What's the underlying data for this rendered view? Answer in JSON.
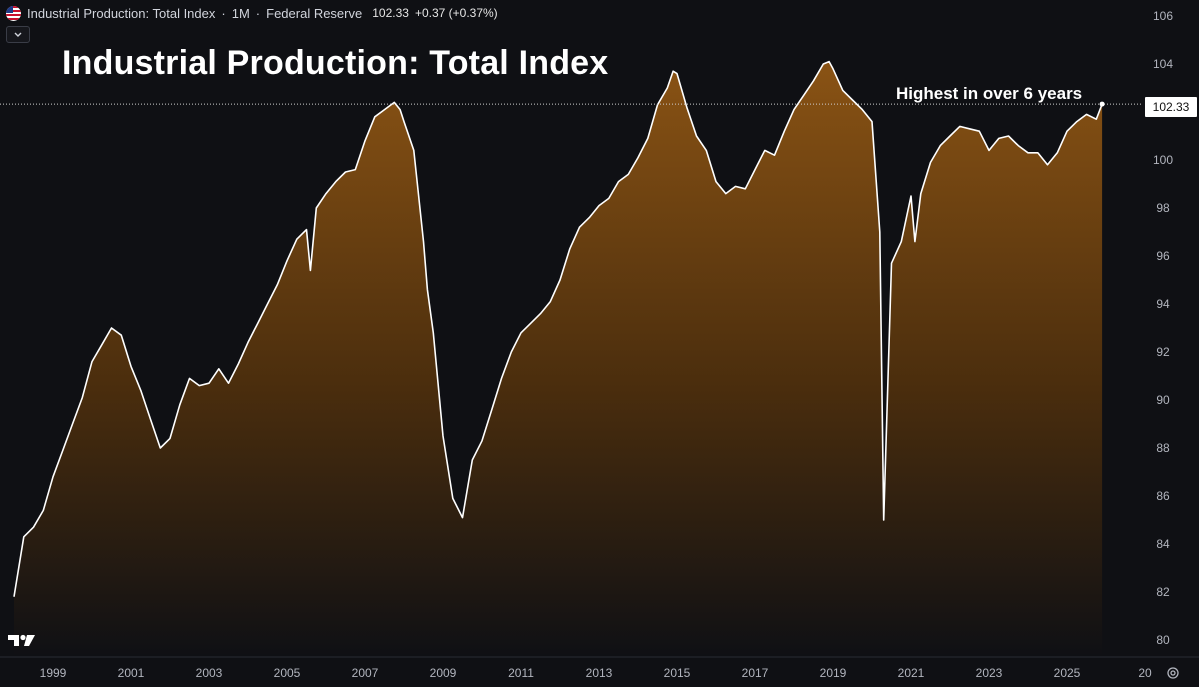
{
  "header": {
    "symbol_name": "Industrial Production: Total Index",
    "separator": "·",
    "interval": "1M",
    "source": "Federal Reserve",
    "price": "102.33",
    "change": "+0.37 (+0.37%)"
  },
  "icons": {
    "flag": "us-flag-icon",
    "collapse": "chevron-down-icon",
    "logo": "tradingview-logo-icon",
    "settings": "gear-icon"
  },
  "colors": {
    "background": "#0f1014",
    "line": "#ffffff",
    "fill_top": "#8a5314",
    "fill_bottom": "#0f1014",
    "text": "#d1d4dc",
    "axis_text": "#b2b5be"
  },
  "chart_data": {
    "type": "area",
    "title": "Industrial Production: Total Index",
    "annotation": "Highest in over 6 years",
    "last_value": 102.33,
    "last_value_label": "102.33",
    "xlim": [
      1998.0,
      2027.0
    ],
    "ylim": [
      79.3,
      106.6
    ],
    "y_ticks": [
      "80",
      "82",
      "84",
      "86",
      "88",
      "90",
      "92",
      "94",
      "96",
      "98",
      "100",
      "102",
      "104",
      "106"
    ],
    "x_ticks": [
      "1999",
      "2001",
      "2003",
      "2005",
      "2007",
      "2009",
      "2011",
      "2013",
      "2015",
      "2017",
      "2019",
      "2021",
      "2023",
      "2025",
      "20"
    ],
    "x": [
      1998.0,
      1998.25,
      1998.5,
      1998.75,
      1999.0,
      1999.25,
      1999.5,
      1999.75,
      2000.0,
      2000.25,
      2000.5,
      2000.75,
      2001.0,
      2001.25,
      2001.5,
      2001.75,
      2002.0,
      2002.25,
      2002.5,
      2002.75,
      2003.0,
      2003.25,
      2003.5,
      2003.75,
      2004.0,
      2004.25,
      2004.5,
      2004.75,
      2005.0,
      2005.25,
      2005.5,
      2005.6,
      2005.75,
      2006.0,
      2006.25,
      2006.5,
      2006.75,
      2007.0,
      2007.25,
      2007.5,
      2007.75,
      2007.9,
      2008.0,
      2008.25,
      2008.5,
      2008.6,
      2008.75,
      2009.0,
      2009.25,
      2009.5,
      2009.75,
      2010.0,
      2010.25,
      2010.5,
      2010.75,
      2011.0,
      2011.25,
      2011.5,
      2011.75,
      2012.0,
      2012.25,
      2012.5,
      2012.75,
      2013.0,
      2013.25,
      2013.5,
      2013.75,
      2014.0,
      2014.25,
      2014.5,
      2014.75,
      2014.9,
      2015.0,
      2015.25,
      2015.5,
      2015.75,
      2016.0,
      2016.25,
      2016.5,
      2016.75,
      2017.0,
      2017.25,
      2017.5,
      2017.75,
      2018.0,
      2018.25,
      2018.5,
      2018.75,
      2018.9,
      2019.0,
      2019.25,
      2019.5,
      2019.75,
      2020.0,
      2020.2,
      2020.3,
      2020.5,
      2020.75,
      2021.0,
      2021.1,
      2021.25,
      2021.5,
      2021.75,
      2022.0,
      2022.25,
      2022.5,
      2022.75,
      2023.0,
      2023.25,
      2023.5,
      2023.75,
      2024.0,
      2024.25,
      2024.5,
      2024.75,
      2025.0,
      2025.25,
      2025.5,
      2025.75,
      2025.9
    ],
    "values": [
      81.8,
      84.3,
      84.7,
      85.4,
      86.8,
      87.9,
      89.0,
      90.1,
      91.6,
      92.3,
      93.0,
      92.7,
      91.4,
      90.4,
      89.2,
      88.0,
      88.4,
      89.8,
      90.9,
      90.6,
      90.7,
      91.3,
      90.7,
      91.5,
      92.4,
      93.2,
      94.0,
      94.8,
      95.8,
      96.7,
      97.1,
      95.4,
      98.0,
      98.6,
      99.1,
      99.5,
      99.6,
      100.8,
      101.8,
      102.1,
      102.4,
      102.1,
      101.6,
      100.4,
      96.6,
      94.6,
      92.8,
      88.5,
      85.9,
      85.1,
      87.5,
      88.3,
      89.6,
      90.9,
      92.0,
      92.8,
      93.2,
      93.6,
      94.1,
      95.0,
      96.3,
      97.2,
      97.6,
      98.1,
      98.4,
      99.1,
      99.4,
      100.1,
      100.9,
      102.3,
      103.0,
      103.7,
      103.6,
      102.2,
      101.0,
      100.4,
      99.1,
      98.6,
      98.9,
      98.8,
      99.6,
      100.4,
      100.2,
      101.2,
      102.1,
      102.7,
      103.3,
      104.0,
      104.1,
      103.8,
      102.9,
      102.5,
      102.1,
      101.6,
      97.0,
      85.0,
      95.7,
      96.6,
      98.5,
      96.6,
      98.6,
      99.9,
      100.6,
      101.0,
      101.4,
      101.3,
      101.2,
      100.4,
      100.9,
      101.0,
      100.6,
      100.3,
      100.3,
      99.8,
      100.3,
      101.2,
      101.6,
      101.9,
      101.7,
      102.33
    ]
  }
}
